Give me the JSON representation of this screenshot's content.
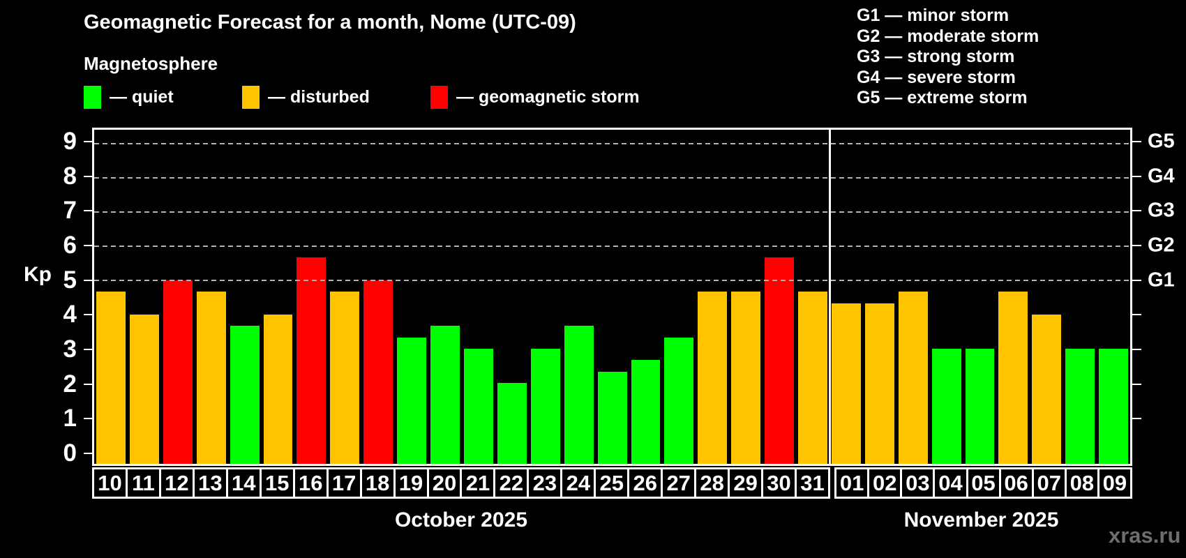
{
  "header": {
    "title": "Geomagnetic Forecast for a month, Nome (UTC-09)",
    "subtitle": "Magnetosphere",
    "legend": [
      {
        "key": "quiet",
        "label": "— quiet"
      },
      {
        "key": "disturbed",
        "label": "— disturbed"
      },
      {
        "key": "storm",
        "label": "— geomagnetic storm"
      }
    ],
    "g_legend": [
      "G1 — minor storm",
      "G2 — moderate storm",
      "G3 — strong storm",
      "G4 — severe storm",
      "G5 — extreme storm"
    ]
  },
  "watermark": "xras.ru",
  "colors": {
    "quiet": "#00ff00",
    "disturbed": "#ffc300",
    "storm": "#ff0000",
    "grid": "#b3b3b3",
    "frame": "#ffffff",
    "background": "#000000",
    "text": "#ffffff",
    "watermark": "#6e6e6e"
  },
  "chart_data": {
    "type": "bar",
    "title": "Geomagnetic Forecast for a month, Nome (UTC-09)",
    "ylabel": "Kp",
    "ylim": [
      0,
      9
    ],
    "axis_draw_range": [
      -0.36,
      9.4
    ],
    "y_ticks": [
      0,
      1,
      2,
      3,
      4,
      5,
      6,
      7,
      8,
      9
    ],
    "grid": "dashed horizontal lines at storm levels only",
    "grid_levels": [
      5,
      6,
      7,
      8,
      9
    ],
    "right_tick_levels": [
      1,
      2,
      3,
      4,
      5,
      6,
      7,
      8,
      9
    ],
    "right_axis_labels": [
      {
        "kp": 5,
        "label": "G1"
      },
      {
        "kp": 6,
        "label": "G2"
      },
      {
        "kp": 7,
        "label": "G3"
      },
      {
        "kp": 8,
        "label": "G4"
      },
      {
        "kp": 9,
        "label": "G5"
      }
    ],
    "legend_position": "top",
    "months": [
      {
        "name": "October 2025",
        "days": [
          {
            "day": "10",
            "kp": 4.67,
            "status": "disturbed"
          },
          {
            "day": "11",
            "kp": 4.0,
            "status": "disturbed"
          },
          {
            "day": "12",
            "kp": 5.0,
            "status": "storm"
          },
          {
            "day": "13",
            "kp": 4.67,
            "status": "disturbed"
          },
          {
            "day": "14",
            "kp": 3.67,
            "status": "quiet"
          },
          {
            "day": "15",
            "kp": 4.0,
            "status": "disturbed"
          },
          {
            "day": "16",
            "kp": 5.67,
            "status": "storm"
          },
          {
            "day": "17",
            "kp": 4.67,
            "status": "disturbed"
          },
          {
            "day": "18",
            "kp": 5.0,
            "status": "storm"
          },
          {
            "day": "19",
            "kp": 3.33,
            "status": "quiet"
          },
          {
            "day": "20",
            "kp": 3.67,
            "status": "quiet"
          },
          {
            "day": "21",
            "kp": 3.0,
            "status": "quiet"
          },
          {
            "day": "22",
            "kp": 2.0,
            "status": "quiet"
          },
          {
            "day": "23",
            "kp": 3.0,
            "status": "quiet"
          },
          {
            "day": "24",
            "kp": 3.67,
            "status": "quiet"
          },
          {
            "day": "25",
            "kp": 2.33,
            "status": "quiet"
          },
          {
            "day": "26",
            "kp": 2.67,
            "status": "quiet"
          },
          {
            "day": "27",
            "kp": 3.33,
            "status": "quiet"
          },
          {
            "day": "28",
            "kp": 4.67,
            "status": "disturbed"
          },
          {
            "day": "29",
            "kp": 4.67,
            "status": "disturbed"
          },
          {
            "day": "30",
            "kp": 5.67,
            "status": "storm"
          },
          {
            "day": "31",
            "kp": 4.67,
            "status": "disturbed"
          }
        ]
      },
      {
        "name": "November 2025",
        "days": [
          {
            "day": "01",
            "kp": 4.33,
            "status": "disturbed"
          },
          {
            "day": "02",
            "kp": 4.33,
            "status": "disturbed"
          },
          {
            "day": "03",
            "kp": 4.67,
            "status": "disturbed"
          },
          {
            "day": "04",
            "kp": 3.0,
            "status": "quiet"
          },
          {
            "day": "05",
            "kp": 3.0,
            "status": "quiet"
          },
          {
            "day": "06",
            "kp": 4.67,
            "status": "disturbed"
          },
          {
            "day": "07",
            "kp": 4.0,
            "status": "disturbed"
          },
          {
            "day": "08",
            "kp": 3.0,
            "status": "quiet"
          },
          {
            "day": "09",
            "kp": 3.0,
            "status": "quiet"
          }
        ]
      }
    ]
  }
}
